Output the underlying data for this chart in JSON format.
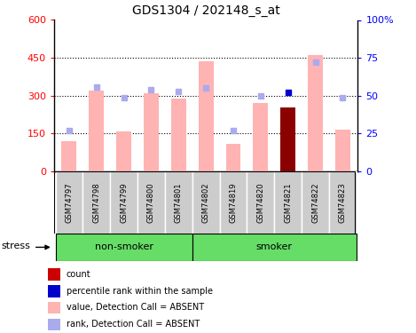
{
  "title": "GDS1304 / 202148_s_at",
  "samples": [
    "GSM74797",
    "GSM74798",
    "GSM74799",
    "GSM74800",
    "GSM74801",
    "GSM74802",
    "GSM74819",
    "GSM74820",
    "GSM74821",
    "GSM74822",
    "GSM74823"
  ],
  "bar_values": [
    120,
    320,
    160,
    310,
    290,
    435,
    110,
    270,
    255,
    460,
    165
  ],
  "bar_colors": [
    "#ffb3b3",
    "#ffb3b3",
    "#ffb3b3",
    "#ffb3b3",
    "#ffb3b3",
    "#ffb3b3",
    "#ffb3b3",
    "#ffb3b3",
    "#8b0000",
    "#ffb3b3",
    "#ffb3b3"
  ],
  "rank_dots": [
    27,
    56,
    49,
    54,
    53,
    55,
    27,
    50,
    52,
    72,
    49
  ],
  "rank_dot_colors": [
    "#aaaaee",
    "#aaaaee",
    "#aaaaee",
    "#aaaaee",
    "#aaaaee",
    "#aaaaee",
    "#aaaaee",
    "#aaaaee",
    "#0000cc",
    "#aaaaee",
    "#aaaaee"
  ],
  "ylim_left": [
    0,
    600
  ],
  "ylim_right": [
    0,
    100
  ],
  "yticks_left": [
    0,
    150,
    300,
    450,
    600
  ],
  "yticks_right": [
    0,
    25,
    50,
    75,
    100
  ],
  "yticklabels_right": [
    "0",
    "25",
    "50",
    "75",
    "100%"
  ],
  "ns_count": 5,
  "s_count": 6,
  "group_nonsmoker_label": "non-smoker",
  "group_smoker_label": "smoker",
  "stress_label": "stress",
  "group_bg_color": "#66dd66",
  "tick_label_bg": "#cccccc",
  "legend_items": [
    {
      "label": "count",
      "color": "#cc0000"
    },
    {
      "label": "percentile rank within the sample",
      "color": "#0000cc"
    },
    {
      "label": "value, Detection Call = ABSENT",
      "color": "#ffb3b3"
    },
    {
      "label": "rank, Detection Call = ABSENT",
      "color": "#aaaaee"
    }
  ]
}
